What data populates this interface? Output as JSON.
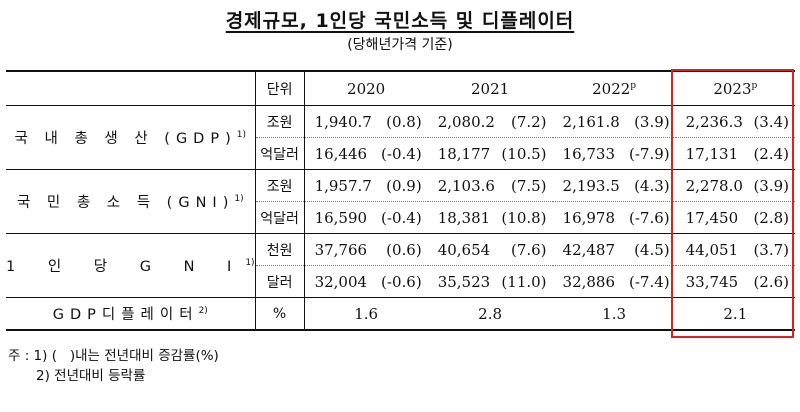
{
  "title": "경제규모, 1인당 국민소득 및 디플레이터",
  "subtitle": "(당해년가격 기준)",
  "header": {
    "unit": "단위",
    "years": [
      {
        "label": "2020",
        "sup": ""
      },
      {
        "label": "2021",
        "sup": ""
      },
      {
        "label": "2022",
        "sup": "p"
      },
      {
        "label": "2023",
        "sup": "p"
      }
    ]
  },
  "rows": [
    {
      "label": "국 내 총 생 산 (GDP)",
      "sup": "1)",
      "lines": [
        {
          "unit": "조원",
          "values": [
            [
              "1,940.7",
              "(0.8)"
            ],
            [
              "2,080.2",
              "(7.2)"
            ],
            [
              "2,161.8",
              "(3.9)"
            ],
            [
              "2,236.3",
              "(3.4)"
            ]
          ]
        },
        {
          "unit": "억달러",
          "values": [
            [
              "16,446",
              "(-0.4)"
            ],
            [
              "18,177",
              "(10.5)"
            ],
            [
              "16,733",
              "(-7.9)"
            ],
            [
              "17,131",
              "(2.4)"
            ]
          ]
        }
      ]
    },
    {
      "label": "국 민 총 소 득 (GNI)",
      "sup": "1)",
      "lines": [
        {
          "unit": "조원",
          "values": [
            [
              "1,957.7",
              "(0.9)"
            ],
            [
              "2,103.6",
              "(7.5)"
            ],
            [
              "2,193.5",
              "(4.3)"
            ],
            [
              "2,278.0",
              "(3.9)"
            ]
          ]
        },
        {
          "unit": "억달러",
          "values": [
            [
              "16,590",
              "(-0.4)"
            ],
            [
              "18,381",
              "(10.8)"
            ],
            [
              "16,978",
              "(-7.6)"
            ],
            [
              "17,450",
              "(2.8)"
            ]
          ]
        }
      ]
    },
    {
      "label": "1 인 당 G N I",
      "sup": "1)",
      "lines": [
        {
          "unit": "천원",
          "values": [
            [
              "37,766",
              "(0.6)"
            ],
            [
              "40,654",
              "(7.6)"
            ],
            [
              "42,487",
              "(4.5)"
            ],
            [
              "44,051",
              "(3.7)"
            ]
          ]
        },
        {
          "unit": "달러",
          "values": [
            [
              "32,004",
              "(-0.6)"
            ],
            [
              "35,523",
              "(11.0)"
            ],
            [
              "32,886",
              "(-7.4)"
            ],
            [
              "33,745",
              "(2.6)"
            ]
          ]
        }
      ]
    }
  ],
  "deflator": {
    "label": "GDP디플레이터",
    "sup": "2)",
    "unit": "%",
    "values": [
      "1.6",
      "2.8",
      "1.3",
      "2.1"
    ]
  },
  "notes": {
    "line1": "주 : 1) (   )내는 전년대비 증감률(%)",
    "line2": "2) 전년대비 등락률"
  }
}
